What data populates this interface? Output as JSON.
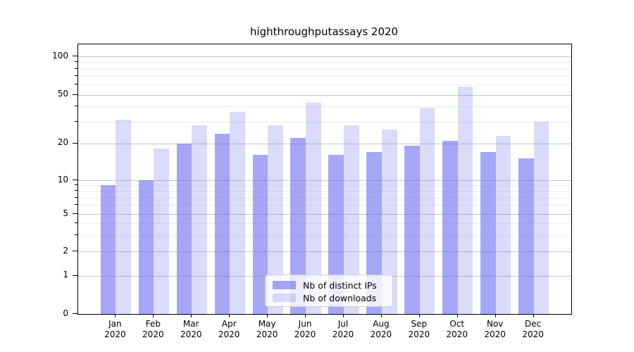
{
  "title": "highthroughputassays 2020",
  "colors": {
    "bar_base": "#6363f1",
    "ips_bar_css": "rgba(99,99,241,0.57)",
    "downloads_bar_css": "rgba(99,99,241,0.23)",
    "grid_major": "#c6c6c6",
    "grid_minor": "#ececec",
    "spine": "#000000",
    "legend_border": "#cccccc",
    "text": "#000000"
  },
  "chart_data": {
    "type": "bar",
    "title": "highthroughputassays 2020",
    "categories": [
      "Jan 2020",
      "Feb 2020",
      "Mar 2020",
      "Apr 2020",
      "May 2020",
      "Jun 2020",
      "Jul 2020",
      "Aug 2020",
      "Sep 2020",
      "Oct 2020",
      "Nov 2020",
      "Dec 2020"
    ],
    "series": [
      {
        "name": "Nb of distinct IPs",
        "color": "rgba(99,99,241,0.57)",
        "values": [
          9,
          10,
          20,
          24,
          16,
          22,
          16,
          17,
          19,
          21,
          17,
          15
        ]
      },
      {
        "name": "Nb of downloads",
        "color": "rgba(99,99,241,0.23)",
        "values": [
          31,
          18,
          28,
          36,
          28,
          43,
          28,
          26,
          39,
          58,
          23,
          30
        ]
      }
    ],
    "xlabel": "",
    "ylabel": "",
    "yscale": "symlog-like (linear 0-1, log above)",
    "ylim": [
      0,
      120
    ],
    "y_major_ticks": [
      0,
      1,
      2,
      5,
      10,
      20,
      50,
      100
    ],
    "y_minor_ticks": [
      3,
      4,
      6,
      7,
      8,
      9,
      30,
      40,
      60,
      70,
      80,
      90
    ],
    "grid": "on",
    "legend_position": "lower center inside plot"
  }
}
